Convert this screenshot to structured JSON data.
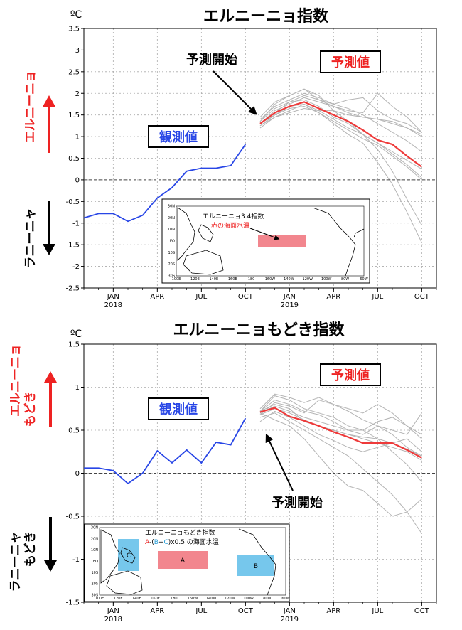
{
  "colors": {
    "observed": "#2846e6",
    "mean_forecast": "#ee3a3a",
    "members": "#b4b4b4",
    "arrow_up": "#ee2222",
    "arrow_down": "#000000",
    "inset_box_a": "#f2868e",
    "inset_box_bc": "#76c7ec"
  },
  "icons": {
    "pointer": "arrow-icon",
    "up": "up-arrow-icon",
    "down": "down-arrow-icon"
  },
  "panel1": {
    "title": "エルニーニョ指数",
    "unit": "ºC",
    "observed_label": "観測値",
    "forecast_label": "予測値",
    "forecast_start": "予測開始",
    "side_up": "エルニーニョ",
    "side_down": "ラニーニャ",
    "inset": {
      "line1": "エルニーニョ3.4指数",
      "line2": "赤の海面水温",
      "lat_labels": [
        "30N",
        "20N",
        "10N",
        "EQ",
        "10S",
        "20S",
        "30S"
      ],
      "lon_labels": [
        "100E",
        "120E",
        "140E",
        "160E",
        "180",
        "160W",
        "140W",
        "120W",
        "100W",
        "80W",
        "60W"
      ]
    }
  },
  "panel2": {
    "title": "エルニーニョもどき指数",
    "unit": "ºC",
    "observed_label": "観測値",
    "forecast_label": "予測値",
    "forecast_start": "予測開始",
    "side_up_1": "エルニーニョ",
    "side_up_2": "もどき",
    "side_down_1": "ラニーニャ",
    "side_down_2": "もどき",
    "inset": {
      "line1": "エルニーニョもどき指数",
      "formula_a": "A",
      "formula_paren": "-(",
      "formula_b": "B",
      "formula_plus": "+",
      "formula_c": "C",
      "formula_tail": ")x0.5 の海面水温",
      "box_a": "A",
      "box_b": "B",
      "box_c": "C",
      "lat_labels": [
        "30N",
        "20N",
        "10N",
        "EQ",
        "10S",
        "20S",
        "30S"
      ],
      "lon_labels": [
        "100E",
        "120E",
        "140E",
        "160E",
        "180",
        "160W",
        "140W",
        "120W",
        "100W",
        "80W",
        "60W"
      ]
    }
  },
  "chart_data": [
    {
      "type": "line",
      "title": "エルニーニョ指数",
      "ylabel": "ºC",
      "ylim": [
        -2.5,
        3.5
      ],
      "yticks": [
        "3.5",
        "3",
        "2.5",
        "2",
        "1.5",
        "1",
        "0.5",
        "0",
        "-0.5",
        "-1",
        "-1.5",
        "-2",
        "-2.5"
      ],
      "xlim": [
        0,
        24
      ],
      "xticks": [
        {
          "month": "JAN",
          "year": "2018",
          "x": 2
        },
        {
          "month": "APR",
          "x": 5
        },
        {
          "month": "JUL",
          "x": 8
        },
        {
          "month": "OCT",
          "x": 11
        },
        {
          "month": "JAN",
          "year": "2019",
          "x": 14
        },
        {
          "month": "APR",
          "x": 17
        },
        {
          "month": "JUL",
          "x": 20
        },
        {
          "month": "OCT",
          "x": 23
        }
      ],
      "grid": true,
      "observed": {
        "x": [
          0,
          1,
          2,
          3,
          4,
          5,
          6,
          7,
          8,
          9,
          10,
          11
        ],
        "y": [
          -0.88,
          -0.78,
          -0.78,
          -0.96,
          -0.82,
          -0.42,
          -0.18,
          0.2,
          0.27,
          0.27,
          0.33,
          0.82
        ]
      },
      "forecast_x": [
        12,
        13,
        14,
        15,
        16,
        17,
        18,
        19,
        20,
        21,
        22,
        23
      ],
      "forecast_mean": [
        1.3,
        1.55,
        1.7,
        1.8,
        1.65,
        1.5,
        1.35,
        1.15,
        0.92,
        0.82,
        0.55,
        0.3
      ],
      "members": [
        [
          1.35,
          1.75,
          1.95,
          2.1,
          1.95,
          1.6,
          1.35,
          1.05,
          0.7,
          0.2,
          -0.45,
          -1.05
        ],
        [
          1.25,
          1.45,
          1.6,
          1.75,
          1.55,
          1.3,
          1.05,
          0.85,
          0.4,
          -0.1,
          -0.75,
          -1.45
        ],
        [
          1.3,
          1.55,
          1.8,
          1.85,
          1.7,
          1.45,
          1.3,
          1.05,
          0.85,
          0.6,
          0.35,
          0.05
        ],
        [
          1.4,
          1.7,
          1.85,
          2.0,
          1.9,
          1.75,
          1.65,
          1.5,
          1.3,
          1.1,
          0.9,
          0.65
        ],
        [
          1.2,
          1.45,
          1.55,
          1.65,
          1.6,
          1.6,
          1.5,
          1.45,
          1.4,
          1.35,
          1.2,
          1.05
        ],
        [
          1.3,
          1.6,
          1.75,
          1.9,
          1.8,
          1.7,
          1.6,
          1.55,
          2.0,
          1.7,
          1.45,
          1.1
        ],
        [
          1.45,
          1.8,
          1.95,
          2.1,
          1.85,
          1.75,
          1.85,
          1.9,
          1.6,
          1.4,
          1.3,
          1.1
        ],
        [
          1.25,
          1.5,
          1.7,
          1.75,
          1.6,
          1.4,
          1.2,
          1.05,
          0.85,
          0.65,
          0.45,
          0.25
        ],
        [
          1.35,
          1.65,
          1.8,
          1.95,
          1.85,
          1.7,
          1.55,
          1.45,
          1.4,
          1.3,
          1.2,
          1.0
        ],
        [
          1.3,
          1.5,
          1.65,
          1.7,
          1.55,
          1.35,
          1.15,
          0.95,
          0.8,
          0.55,
          0.3,
          0.0
        ]
      ]
    },
    {
      "type": "line",
      "title": "エルニーニョもどき指数",
      "ylabel": "ºC",
      "ylim": [
        -1.5,
        1.5
      ],
      "yticks": [
        "1.5",
        "1",
        "0.5",
        "0",
        "-0.5",
        "-1",
        "-1.5"
      ],
      "xlim": [
        0,
        24
      ],
      "xticks": [
        {
          "month": "JAN",
          "year": "2018",
          "x": 2
        },
        {
          "month": "APR",
          "x": 5
        },
        {
          "month": "JUL",
          "x": 8
        },
        {
          "month": "OCT",
          "x": 11
        },
        {
          "month": "JAN",
          "year": "2019",
          "x": 14
        },
        {
          "month": "APR",
          "x": 17
        },
        {
          "month": "JUL",
          "x": 20
        },
        {
          "month": "OCT",
          "x": 23
        }
      ],
      "grid": true,
      "observed": {
        "x": [
          0,
          1,
          2,
          3,
          4,
          5,
          6,
          7,
          8,
          9,
          10,
          11
        ],
        "y": [
          0.06,
          0.06,
          0.03,
          -0.12,
          0.0,
          0.26,
          0.12,
          0.27,
          0.12,
          0.36,
          0.33,
          0.64
        ]
      },
      "forecast_x": [
        12,
        13,
        14,
        15,
        16,
        17,
        18,
        19,
        20,
        21,
        22,
        23
      ],
      "forecast_mean": [
        0.71,
        0.76,
        0.66,
        0.61,
        0.55,
        0.48,
        0.42,
        0.35,
        0.35,
        0.35,
        0.27,
        0.18
      ],
      "members": [
        [
          0.72,
          0.9,
          0.85,
          0.75,
          0.7,
          0.65,
          0.55,
          0.5,
          0.4,
          0.25,
          0.1,
          -0.1
        ],
        [
          0.68,
          0.82,
          0.78,
          0.7,
          0.85,
          0.8,
          0.75,
          0.7,
          0.8,
          0.7,
          0.55,
          0.4
        ],
        [
          0.75,
          0.92,
          0.88,
          0.82,
          0.88,
          0.8,
          0.72,
          0.62,
          0.55,
          0.45,
          0.3,
          0.2
        ],
        [
          0.7,
          0.78,
          0.72,
          0.65,
          0.6,
          0.55,
          0.5,
          0.5,
          0.6,
          0.65,
          0.55,
          0.45
        ],
        [
          0.72,
          0.85,
          0.8,
          0.72,
          0.68,
          0.6,
          0.5,
          0.45,
          0.55,
          0.5,
          0.45,
          0.7
        ],
        [
          0.65,
          0.7,
          0.6,
          0.5,
          0.4,
          0.3,
          0.2,
          0.05,
          -0.1,
          -0.25,
          -0.45,
          -0.7
        ],
        [
          0.6,
          0.72,
          0.65,
          0.55,
          0.45,
          0.38,
          0.3,
          0.25,
          0.3,
          0.35,
          0.4,
          0.25
        ],
        [
          0.7,
          0.62,
          0.55,
          0.4,
          0.2,
          0.0,
          -0.15,
          -0.2,
          -0.35,
          -0.5,
          -0.45,
          -0.3
        ],
        [
          0.72,
          0.8,
          0.75,
          0.6,
          0.55,
          0.5,
          0.45,
          0.4,
          0.35,
          0.3,
          0.25,
          0.15
        ],
        [
          0.68,
          0.75,
          0.7,
          0.62,
          0.55,
          0.5,
          0.45,
          0.42,
          0.4,
          0.35,
          0.28,
          0.2
        ]
      ]
    }
  ]
}
